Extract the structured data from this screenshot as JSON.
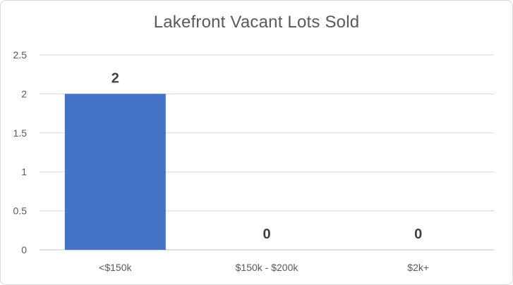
{
  "chart_data": {
    "type": "bar",
    "title": "Lakefront Vacant Lots Sold",
    "categories": [
      "<$150k",
      "$150k - $200k",
      "$2k+"
    ],
    "values": [
      2,
      0,
      0
    ],
    "xlabel": "",
    "ylabel": "",
    "ylim": [
      0,
      2.5
    ],
    "yticks": [
      0,
      0.5,
      1,
      1.5,
      2,
      2.5
    ],
    "grid": true,
    "data_labels": true,
    "bar_color": "#4472c4",
    "legend": "none"
  }
}
